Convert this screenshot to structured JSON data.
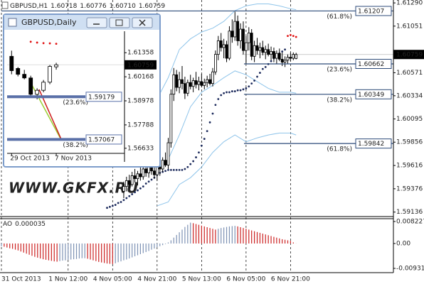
{
  "chart_data": [
    {
      "type": "candlestick",
      "header": {
        "symbol": "GBPUSD,H1",
        "value_labels": [
          "1.60718",
          "1.60776",
          "1.60710",
          "1.60759"
        ]
      },
      "xlim": [
        0,
        141
      ],
      "ylim": [
        1.5909,
        1.6132
      ],
      "yticks": [
        {
          "value": 1.6129,
          "label": "1.61290"
        },
        1.61051,
        1.60571,
        1.60334,
        1.60095,
        1.59856,
        1.59616,
        1.59376,
        1.59136
      ],
      "xticks": [
        {
          "value": 0,
          "label": "31 Oct 2013"
        },
        {
          "value": 24,
          "label": "1 Nov 12:00"
        },
        {
          "value": 40,
          "label": "4 Nov 05:00"
        },
        {
          "value": 56,
          "label": "4 Nov 21:00"
        },
        {
          "value": 72,
          "label": "5 Nov 13:00"
        },
        {
          "value": 88,
          "label": "6 Nov 05:00"
        },
        {
          "value": 104,
          "label": "6 Nov 21:00"
        }
      ],
      "color_up": "#ffffff",
      "color_down": "#000000",
      "candles": {
        "x": [
          44,
          45,
          46,
          47,
          48,
          49,
          50,
          51,
          52,
          53,
          54,
          55,
          56,
          57,
          58,
          59,
          60,
          61,
          62,
          63,
          64,
          65,
          66,
          67,
          68,
          69,
          70,
          71,
          72,
          73,
          74,
          75,
          76,
          77,
          78,
          79,
          80,
          81,
          82,
          83,
          84,
          85,
          86,
          87,
          88,
          89,
          90,
          91,
          92,
          93,
          94,
          95,
          96,
          97,
          98,
          99,
          100,
          101,
          102,
          103,
          104,
          105,
          106
        ],
        "open": [
          1.5935,
          1.594,
          1.5946,
          1.5942,
          1.5951,
          1.5948,
          1.5953,
          1.595,
          1.5958,
          1.5954,
          1.596,
          1.5956,
          1.5952,
          1.596,
          1.5958,
          1.5967,
          1.5962,
          1.5985,
          1.6035,
          1.6055,
          1.6042,
          1.605,
          1.6046,
          1.6036,
          1.6047,
          1.6043,
          1.6049,
          1.6045,
          1.6048,
          1.6044,
          1.6047,
          1.605,
          1.6046,
          1.6058,
          1.6076,
          1.609,
          1.6083,
          1.6086,
          1.6072,
          1.61,
          1.6094,
          1.611,
          1.609,
          1.6102,
          1.608,
          1.6088,
          1.6098,
          1.6074,
          1.6085,
          1.608,
          1.6083,
          1.6078,
          1.6081,
          1.6076,
          1.6079,
          1.6072,
          1.6077,
          1.6071,
          1.6068,
          1.607,
          1.6073,
          1.6072,
          1.60718
        ],
        "high": [
          1.5945,
          1.595,
          1.5952,
          1.5955,
          1.5958,
          1.5956,
          1.596,
          1.5962,
          1.5965,
          1.5963,
          1.5967,
          1.5964,
          1.5962,
          1.5966,
          1.597,
          1.5975,
          1.599,
          1.604,
          1.6062,
          1.606,
          1.6058,
          1.6064,
          1.6053,
          1.605,
          1.6055,
          1.6052,
          1.6058,
          1.6053,
          1.6056,
          1.6051,
          1.6054,
          1.6056,
          1.6062,
          1.608,
          1.6095,
          1.6098,
          1.6092,
          1.609,
          1.6105,
          1.6112,
          1.612,
          1.6116,
          1.6108,
          1.611,
          1.6095,
          1.6104,
          1.6102,
          1.609,
          1.6093,
          1.6088,
          1.609,
          1.6085,
          1.6087,
          1.6084,
          1.6083,
          1.608,
          1.6082,
          1.6078,
          1.6074,
          1.6076,
          1.6078,
          1.6078,
          1.60776
        ],
        "low": [
          1.5928,
          1.5935,
          1.5938,
          1.594,
          1.5944,
          1.5941,
          1.5946,
          1.5947,
          1.595,
          1.5949,
          1.5952,
          1.5948,
          1.5946,
          1.5951,
          1.5955,
          1.596,
          1.5958,
          1.598,
          1.6028,
          1.6038,
          1.6036,
          1.604,
          1.603,
          1.6033,
          1.604,
          1.6037,
          1.6041,
          1.6039,
          1.6042,
          1.604,
          1.6042,
          1.6044,
          1.6043,
          1.6055,
          1.607,
          1.6079,
          1.6072,
          1.6068,
          1.607,
          1.6088,
          1.609,
          1.6085,
          1.6082,
          1.6076,
          1.6066,
          1.608,
          1.607,
          1.6068,
          1.6076,
          1.6072,
          1.6075,
          1.6071,
          1.6074,
          1.607,
          1.6068,
          1.6066,
          1.6069,
          1.6064,
          1.6063,
          1.6066,
          1.6069,
          1.607,
          1.6071
        ],
        "close": [
          1.594,
          1.5946,
          1.5942,
          1.5951,
          1.5948,
          1.5953,
          1.595,
          1.5958,
          1.5954,
          1.596,
          1.5956,
          1.5952,
          1.596,
          1.5958,
          1.5967,
          1.5962,
          1.5985,
          1.6035,
          1.6055,
          1.6042,
          1.605,
          1.6046,
          1.6036,
          1.6047,
          1.6043,
          1.6049,
          1.6045,
          1.6048,
          1.6044,
          1.6047,
          1.605,
          1.6046,
          1.6058,
          1.6076,
          1.609,
          1.6083,
          1.6086,
          1.6072,
          1.61,
          1.6094,
          1.611,
          1.609,
          1.6102,
          1.608,
          1.6088,
          1.6098,
          1.6074,
          1.6085,
          1.608,
          1.6083,
          1.6078,
          1.6081,
          1.6076,
          1.6079,
          1.6072,
          1.6077,
          1.6071,
          1.6068,
          1.607,
          1.6073,
          1.6072,
          1.6076,
          1.60759
        ]
      },
      "sar": [
        {
          "color": "#1c2a5c",
          "x": [
            38,
            39,
            40,
            41,
            42,
            43,
            44,
            45,
            46,
            47,
            48,
            49,
            50,
            51,
            52,
            53,
            54,
            55,
            56,
            57,
            58,
            59,
            60,
            61,
            62,
            63,
            64,
            65,
            66,
            67,
            68,
            69,
            70,
            71,
            72,
            73,
            74,
            75,
            76,
            77,
            78,
            79,
            80,
            81,
            82,
            83,
            84,
            85,
            86,
            87,
            88,
            89,
            90,
            91,
            92,
            93,
            94,
            95,
            96,
            97,
            98,
            99,
            100,
            101,
            102
          ],
          "values": [
            1.5918,
            1.5919,
            1.592,
            1.5921,
            1.5923,
            1.5924,
            1.5926,
            1.5928,
            1.593,
            1.5932,
            1.5934,
            1.5936,
            1.5938,
            1.594,
            1.5943,
            1.5945,
            1.5947,
            1.5949,
            1.5952,
            1.5954,
            1.5955,
            1.5956,
            1.5957,
            1.5957,
            1.5957,
            1.5957,
            1.5957,
            1.5957,
            1.5958,
            1.596,
            1.5963,
            1.5966,
            1.597,
            1.5975,
            1.5982,
            1.5989,
            1.5997,
            1.6006,
            1.6015,
            1.6024,
            1.603,
            1.6034,
            1.6036,
            1.6037,
            1.6037,
            1.6038,
            1.6038,
            1.6039,
            1.6039,
            1.604,
            1.6041,
            1.6043,
            1.6046,
            1.6049,
            1.6053,
            1.6057,
            1.6061,
            1.6063,
            1.6066,
            1.6069,
            1.6072,
            1.6075,
            1.6077,
            1.6079,
            1.6081
          ]
        },
        {
          "color": "#e01010",
          "x": [
            103,
            104,
            105,
            106
          ],
          "values": [
            1.6095,
            1.6096,
            1.6095,
            1.6094
          ]
        }
      ],
      "bands": {
        "color": "#8ec4ea",
        "x": [
          56,
          60,
          64,
          68,
          72,
          76,
          80,
          84,
          88,
          92,
          96,
          100,
          104,
          106
        ],
        "upper": [
          1.603,
          1.6052,
          1.6081,
          1.6092,
          1.6099,
          1.6103,
          1.611,
          1.6121,
          1.6126,
          1.6128,
          1.6128,
          1.6126,
          1.6123,
          1.6122
        ],
        "middle": [
          1.5957,
          1.5968,
          1.5993,
          1.6022,
          1.6037,
          1.6044,
          1.6052,
          1.6059,
          1.6055,
          1.6048,
          1.6041,
          1.6037,
          1.6037,
          1.6036
        ],
        "lower": [
          1.592,
          1.5924,
          1.5942,
          1.5949,
          1.596,
          1.5975,
          1.5986,
          1.5993,
          1.5986,
          1.599,
          1.5993,
          1.5995,
          1.5995,
          1.5993
        ]
      },
      "levels": [
        {
          "label": "(61.8%)",
          "value": 1.61207
        },
        {
          "label": "(23.6%)",
          "value": 1.60662
        },
        {
          "label": "(38.2%)",
          "value": 1.60349
        },
        {
          "label": "(61.8%)",
          "value": 1.59842
        }
      ],
      "level_color": "#2c4a78",
      "watermark": "WWW.GKFX.RU"
    },
    {
      "type": "bar",
      "title": "AO",
      "xlim": [
        0,
        141
      ],
      "ylim": [
        -0.01091,
        0.00929
      ],
      "yticks": [
        0.008227,
        {
          "value": 0,
          "label": "0.00"
        },
        -0.009316
      ],
      "color_up": "#7d92b4",
      "color_down": "#cc2020",
      "values": [
        -0.001,
        -0.0012,
        -0.0015,
        -0.0018,
        -0.002,
        -0.0023,
        -0.0026,
        -0.003,
        -0.0034,
        -0.0038,
        -0.0042,
        -0.0046,
        -0.005,
        -0.0053,
        -0.0056,
        -0.0059,
        -0.0061,
        -0.0063,
        -0.0065,
        -0.0067,
        -0.0068,
        -0.0066,
        -0.0064,
        -0.0063,
        -0.0061,
        -0.006,
        -0.0059,
        -0.0058,
        -0.0056,
        -0.0055,
        -0.0055,
        -0.0057,
        -0.006,
        -0.0063,
        -0.0066,
        -0.0069,
        -0.0071,
        -0.0073,
        -0.0075,
        -0.0076,
        -0.0077,
        -0.0074,
        -0.007,
        -0.0067,
        -0.0063,
        -0.006,
        -0.0056,
        -0.0052,
        -0.0048,
        -0.0044,
        -0.004,
        -0.0036,
        -0.0032,
        -0.0028,
        -0.0023,
        -0.0019,
        -0.0014,
        -0.001,
        -0.0006,
        -0.0002,
        0.0004,
        0.0012,
        0.0022,
        0.0032,
        0.0042,
        0.0052,
        0.0062,
        0.007,
        0.0078,
        0.0076,
        0.0073,
        0.007,
        0.0067,
        0.0064,
        0.0061,
        0.0058,
        0.0055,
        0.0052,
        0.0055,
        0.0058,
        0.006,
        0.0062,
        0.0064,
        0.0065,
        0.0066,
        0.0064,
        0.0061,
        0.0058,
        0.0055,
        0.0052,
        0.0049,
        0.0046,
        0.0043,
        0.004,
        0.0037,
        0.0034,
        0.0031,
        0.0028,
        0.0025,
        0.0022,
        0.0019,
        0.0016,
        0.0014,
        0.0012,
        0.001,
        0.0004,
        3.5e-05
      ]
    },
    {
      "type": "candlestick",
      "title": "GBPUSD,Daily",
      "xlim": [
        -0.7,
        17.7
      ],
      "ylim": [
        1.5638,
        1.6242
      ],
      "yticks": [
        1.61358,
        1.60168,
        1.58978,
        1.57788,
        1.56633
      ],
      "xticks": [
        {
          "value": 0,
          "label": "29 Oct 2013"
        },
        {
          "value": 7,
          "label": "7 Nov 2013"
        }
      ],
      "color_up": "#ffffff",
      "color_down": "#000000",
      "candles": {
        "x": [
          0,
          1,
          2,
          3,
          4,
          5,
          6,
          7
        ],
        "open": [
          1.6118,
          1.6058,
          1.6029,
          1.6011,
          1.593,
          1.595,
          1.599,
          1.60659
        ],
        "high": [
          1.6146,
          1.6065,
          1.6051,
          1.6022,
          1.596,
          1.6001,
          1.6075,
          1.6086
        ],
        "low": [
          1.6029,
          1.6019,
          1.6004,
          1.5916,
          1.5905,
          1.594,
          1.598,
          1.6052
        ],
        "close": [
          1.6047,
          1.6029,
          1.6011,
          1.593,
          1.595,
          1.599,
          1.6068,
          1.60759
        ]
      },
      "sar": [
        {
          "color": "#e01010",
          "x": [
            3,
            4,
            5,
            6,
            7
          ],
          "values": [
            1.619,
            1.6186,
            1.6183,
            1.6182,
            1.618
          ]
        }
      ],
      "levels": [
        {
          "label": "(23.6%)",
          "value": 1.59179
        },
        {
          "label": "(38.2%)",
          "value": 1.57067
        }
      ],
      "level_color": "#5a70a8"
    }
  ]
}
